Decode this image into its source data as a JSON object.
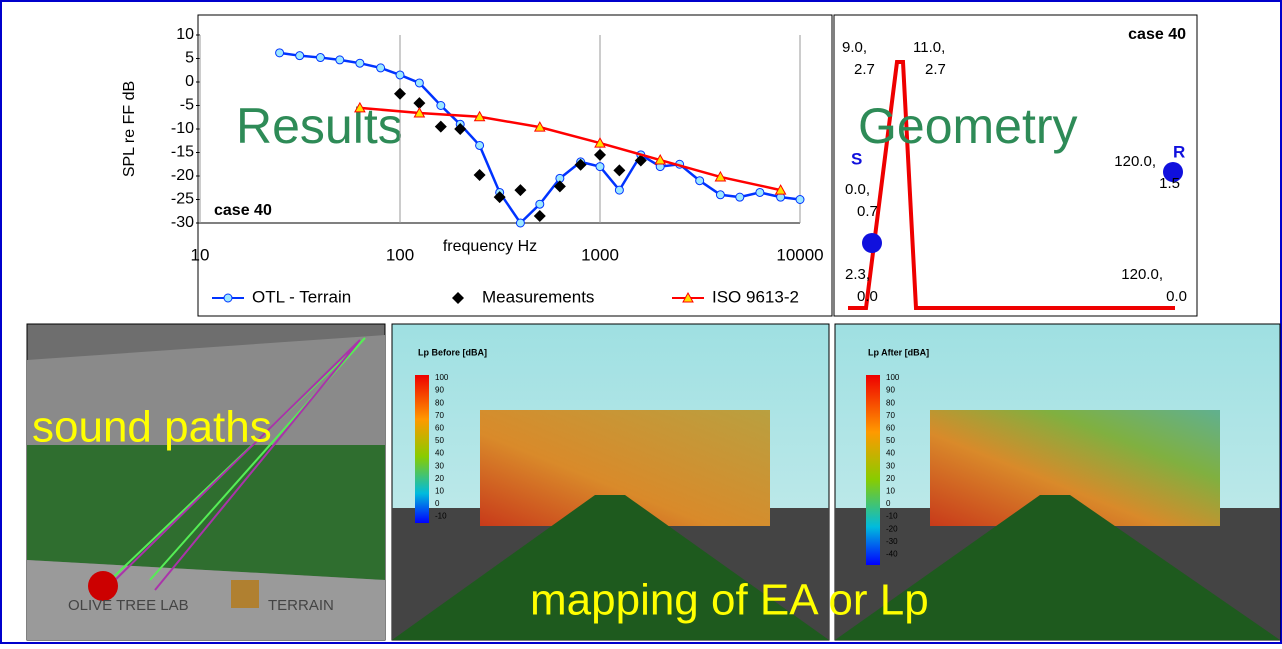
{
  "chart_data": {
    "type": "line",
    "overlay_title": "Results",
    "case_label": "case 40",
    "x_label": "frequency Hz",
    "y_label": "SPL re FF dB",
    "xscale": "log",
    "xlim": [
      10,
      10000
    ],
    "xticks": [
      10,
      100,
      1000,
      10000
    ],
    "ylim": [
      -30,
      10
    ],
    "yticks": [
      10,
      5,
      0,
      -5,
      -10,
      -15,
      -20,
      -25,
      -30
    ],
    "grid_x": true,
    "legend": "bottom",
    "series": [
      {
        "name": "OTL - Terrain",
        "color": "#0033ff",
        "marker": "circle",
        "line": true,
        "x": [
          25,
          31.5,
          40,
          50,
          63,
          80,
          100,
          125,
          160,
          200,
          250,
          315,
          400,
          500,
          630,
          800,
          1000,
          1250,
          1600,
          2000,
          2500,
          3150,
          4000,
          5000,
          6300,
          8000,
          10000
        ],
        "values": [
          6.2,
          5.6,
          5.2,
          4.7,
          4,
          3,
          1.5,
          -0.2,
          -5,
          -9,
          -13.5,
          -23.5,
          -30,
          -26,
          -20.5,
          -17,
          -18,
          -23,
          -15.5,
          -18,
          -17.5,
          -21,
          -24,
          -24.5,
          -23.5,
          -24.5,
          -25
        ]
      },
      {
        "name": "Measurements",
        "color": "#000000",
        "marker": "diamond",
        "line": false,
        "x": [
          100,
          125,
          160,
          200,
          250,
          315,
          400,
          500,
          630,
          800,
          1000,
          1250,
          1600
        ],
        "values": [
          -2.5,
          -4.5,
          -9.5,
          -10,
          -19.8,
          -24.5,
          -23,
          -28.5,
          -22.2,
          -17.6,
          -15.5,
          -18.8,
          -16.7
        ]
      },
      {
        "name": "ISO 9613-2",
        "color": "#ff0000",
        "marker": "triangle",
        "line": true,
        "x": [
          63,
          125,
          250,
          500,
          1000,
          2000,
          4000,
          8000
        ],
        "values": [
          -5.5,
          -6.6,
          -7.4,
          -9.6,
          -13,
          -16.6,
          -20.2,
          -23
        ]
      }
    ]
  },
  "geometry": {
    "title": "Geometry",
    "case_label": "case 40",
    "source": "S",
    "receiver": "R",
    "labels": [
      [
        "9.0,",
        "2.7"
      ],
      [
        "11.0,",
        "2.7"
      ],
      [
        "120.0,",
        "1.5"
      ],
      [
        "0.0,",
        "0.7"
      ],
      [
        "2.3,",
        "0.0"
      ],
      [
        "120.0,",
        "0.0"
      ]
    ]
  },
  "panels": {
    "sound_paths": "sound paths",
    "before_title": "Lp Before [dBA]",
    "after_title": "Lp After [dBA]",
    "before_scale": [
      "100",
      "90",
      "80",
      "70",
      "60",
      "50",
      "40",
      "30",
      "20",
      "10",
      "0",
      "-10"
    ],
    "after_scale": [
      "100",
      "90",
      "80",
      "70",
      "60",
      "50",
      "40",
      "30",
      "20",
      "10",
      "0",
      "-10",
      "-20",
      "-30",
      "-40"
    ],
    "logo_left": "OLIVE TREE LAB",
    "logo_right": "TERRAIN",
    "caption": "mapping of EA or Lp"
  }
}
